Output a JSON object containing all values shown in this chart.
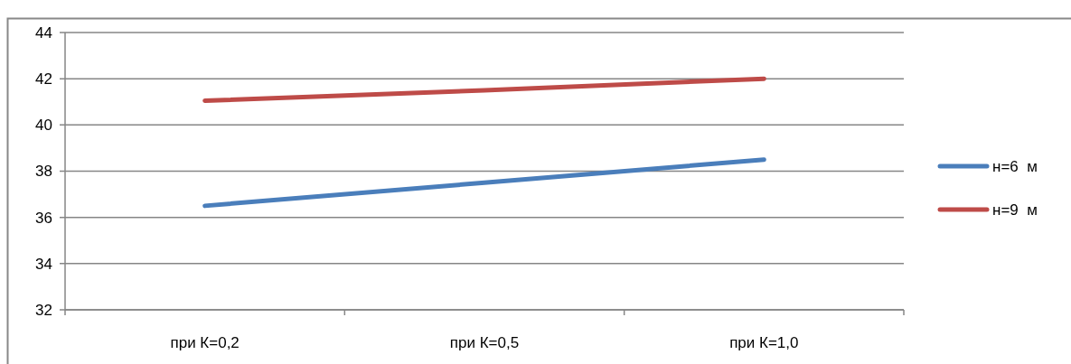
{
  "chart_data": {
    "type": "line",
    "categories": [
      "при К=0,2",
      "при К=0,5",
      "при К=1,0"
    ],
    "series": [
      {
        "name": "н=6  м",
        "color": "#4a7ebb",
        "values": [
          36.5,
          37.5,
          38.5
        ]
      },
      {
        "name": "н=9  м",
        "color": "#be4b48",
        "values": [
          41.05,
          41.5,
          42.0
        ]
      }
    ],
    "ylim": [
      32,
      44
    ],
    "yticks": [
      32,
      34,
      36,
      38,
      40,
      42,
      44
    ],
    "grid": "y",
    "legend": "right",
    "marker": "none",
    "line_style": "solid"
  }
}
